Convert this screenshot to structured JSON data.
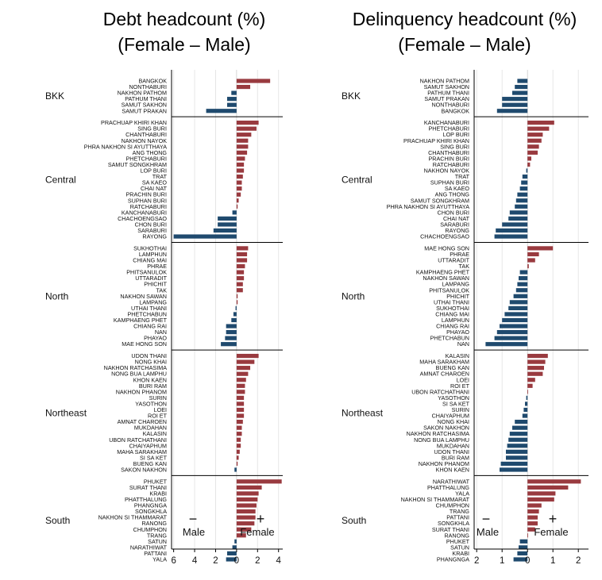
{
  "colors": {
    "positive": "#993a3f",
    "negative": "#1f4a6e",
    "grid": "#e6e6e6",
    "axis": "#000000"
  },
  "chart_data": [
    {
      "type": "bar",
      "orientation": "horizontal",
      "title_lines": [
        "Debt headcount (%)",
        "(Female – Male)"
      ],
      "x_reversed_labels": true,
      "xlim": [
        -6.2,
        4.4
      ],
      "xticks": [
        -6,
        -4,
        -2,
        0,
        2,
        4
      ],
      "xtick_labels": [
        "6",
        "4",
        "2",
        "0",
        "2",
        "4"
      ],
      "annotation": {
        "minus": "−",
        "plus": "+",
        "left_label": "Male",
        "right_label": "Female"
      },
      "groups": [
        {
          "region": "BKK",
          "provinces": [
            {
              "name": "BANGKOK",
              "value": 3.2
            },
            {
              "name": "NONTHABURI",
              "value": 1.3
            },
            {
              "name": "NAKHON PATHOM",
              "value": -0.5
            },
            {
              "name": "PATHUM THANI",
              "value": -0.9
            },
            {
              "name": "SAMUT SAKHON",
              "value": -0.9
            },
            {
              "name": "SAMUT PRAKAN",
              "value": -2.9
            }
          ]
        },
        {
          "region": "Central",
          "provinces": [
            {
              "name": "PRACHUAP KHIRI KHAN",
              "value": 2.1
            },
            {
              "name": "SING BURI",
              "value": 1.9
            },
            {
              "name": "CHANTHABURI",
              "value": 1.4
            },
            {
              "name": "NAKHON NAYOK",
              "value": 1.1
            },
            {
              "name": "PHRA NAKHON SI AYUTTHAYA",
              "value": 1.1
            },
            {
              "name": "ANG THONG",
              "value": 1.0
            },
            {
              "name": "PHETCHABURI",
              "value": 0.8
            },
            {
              "name": "SAMUT SONGKHRAM",
              "value": 0.7
            },
            {
              "name": "LOP BURI",
              "value": 0.7
            },
            {
              "name": "TRAT",
              "value": 0.6
            },
            {
              "name": "SA KAEO",
              "value": 0.5
            },
            {
              "name": "CHAI NAT",
              "value": 0.5
            },
            {
              "name": "PRACHIN BURI",
              "value": 0.4
            },
            {
              "name": "SUPHAN BURI",
              "value": 0.2
            },
            {
              "name": "RATCHABURI",
              "value": 0.1
            },
            {
              "name": "KANCHANABURI",
              "value": -0.4
            },
            {
              "name": "CHACHOENGSAO",
              "value": -1.8
            },
            {
              "name": "CHON BURI",
              "value": -1.8
            },
            {
              "name": "SARABURI",
              "value": -2.2
            },
            {
              "name": "RAYONG",
              "value": -6.0
            }
          ]
        },
        {
          "region": "North",
          "provinces": [
            {
              "name": "SUKHOTHAI",
              "value": 1.1
            },
            {
              "name": "LAMPHUN",
              "value": 1.0
            },
            {
              "name": "CHIANG MAI",
              "value": 1.0
            },
            {
              "name": "PHRAE",
              "value": 0.8
            },
            {
              "name": "PHITSANULOK",
              "value": 0.7
            },
            {
              "name": "UTTARADIT",
              "value": 0.7
            },
            {
              "name": "PHICHIT",
              "value": 0.6
            },
            {
              "name": "TAK",
              "value": 0.6
            },
            {
              "name": "NAKHON SAWAN",
              "value": 0.1
            },
            {
              "name": "LAMPANG",
              "value": 0.1
            },
            {
              "name": "UTHAI THANI",
              "value": -0.1
            },
            {
              "name": "PHETCHABUN",
              "value": -0.3
            },
            {
              "name": "KAMPHAENG PHET",
              "value": -0.5
            },
            {
              "name": "CHIANG RAI",
              "value": -1.0
            },
            {
              "name": "NAN",
              "value": -1.0
            },
            {
              "name": "PHAYAO",
              "value": -1.1
            },
            {
              "name": "MAE HONG SON",
              "value": -1.5
            }
          ]
        },
        {
          "region": "Northeast",
          "provinces": [
            {
              "name": "UDON THANI",
              "value": 2.1
            },
            {
              "name": "NONG KHAI",
              "value": 1.7
            },
            {
              "name": "NAKHON RATCHASIMA",
              "value": 1.3
            },
            {
              "name": "NONG BUA LAMPHU",
              "value": 1.1
            },
            {
              "name": "KHON KAEN",
              "value": 0.9
            },
            {
              "name": "BURI RAM",
              "value": 0.8
            },
            {
              "name": "NAKHON PHANOM",
              "value": 0.8
            },
            {
              "name": "SURIN",
              "value": 0.7
            },
            {
              "name": "YASOTHON",
              "value": 0.7
            },
            {
              "name": "LOEI",
              "value": 0.7
            },
            {
              "name": "ROI ET",
              "value": 0.7
            },
            {
              "name": "AMNAT CHAROEN",
              "value": 0.6
            },
            {
              "name": "MUKDAHAN",
              "value": 0.5
            },
            {
              "name": "KALASIN",
              "value": 0.5
            },
            {
              "name": "UBON RATCHATHANI",
              "value": 0.4
            },
            {
              "name": "CHAIYAPHUM",
              "value": 0.4
            },
            {
              "name": "MAHA SARAKHAM",
              "value": 0.3
            },
            {
              "name": "SI SA KET",
              "value": 0.2
            },
            {
              "name": "BUENG KAN",
              "value": 0.1
            },
            {
              "name": "SAKON NAKHON",
              "value": -0.2
            }
          ]
        },
        {
          "region": "South",
          "provinces": [
            {
              "name": "PHUKET",
              "value": 4.3
            },
            {
              "name": "SURAT THANI",
              "value": 2.4
            },
            {
              "name": "KRABI",
              "value": 2.1
            },
            {
              "name": "PHATTHALUNG",
              "value": 2.0
            },
            {
              "name": "PHANGNGA",
              "value": 1.9
            },
            {
              "name": "SONGKHLA",
              "value": 1.8
            },
            {
              "name": "NAKHON SI THAMMARAT",
              "value": 1.8
            },
            {
              "name": "RANONG",
              "value": 1.7
            },
            {
              "name": "CHUMPHON",
              "value": 1.4
            },
            {
              "name": "TRANG",
              "value": 0.9
            },
            {
              "name": "SATUN",
              "value": -0.2
            },
            {
              "name": "NARATHIWAT",
              "value": -0.4
            },
            {
              "name": "PATTANI",
              "value": -0.9
            },
            {
              "name": "YALA",
              "value": -1.0
            }
          ]
        }
      ]
    },
    {
      "type": "bar",
      "orientation": "horizontal",
      "title_lines": [
        "Delinquency headcount (%)",
        "(Female – Male)"
      ],
      "x_reversed_labels": true,
      "xlim": [
        -2.1,
        2.4
      ],
      "xticks": [
        -2,
        -1,
        0,
        1,
        2
      ],
      "xtick_labels": [
        "2",
        "1",
        "0",
        "1",
        "2"
      ],
      "annotation": {
        "minus": "−",
        "plus": "+",
        "left_label": "Male",
        "right_label": "Female"
      },
      "groups": [
        {
          "region": "BKK",
          "provinces": [
            {
              "name": "NAKHON PATHOM",
              "value": -0.4
            },
            {
              "name": "SAMUT SAKHON",
              "value": -0.5
            },
            {
              "name": "PATHUM THANI",
              "value": -0.6
            },
            {
              "name": "SAMUT PRAKAN",
              "value": -1.0
            },
            {
              "name": "NONTHABURI",
              "value": -1.0
            },
            {
              "name": "BANGKOK",
              "value": -1.2
            }
          ]
        },
        {
          "region": "Central",
          "provinces": [
            {
              "name": "KANCHANABURI",
              "value": 1.05
            },
            {
              "name": "PHETCHABURI",
              "value": 0.85
            },
            {
              "name": "LOP BURI",
              "value": 0.6
            },
            {
              "name": "PRACHUAP KHIRI KHAN",
              "value": 0.55
            },
            {
              "name": "SING BURI",
              "value": 0.45
            },
            {
              "name": "CHANTHABURI",
              "value": 0.4
            },
            {
              "name": "PRACHIN BURI",
              "value": 0.15
            },
            {
              "name": "RATCHABURI",
              "value": 0.1
            },
            {
              "name": "NAKHON NAYOK",
              "value": -0.05
            },
            {
              "name": "TRAT",
              "value": -0.2
            },
            {
              "name": "SUPHAN BURI",
              "value": -0.25
            },
            {
              "name": "SA KAEO",
              "value": -0.3
            },
            {
              "name": "ANG THONG",
              "value": -0.4
            },
            {
              "name": "SAMUT SONGKHRAM",
              "value": -0.45
            },
            {
              "name": "PHRA NAKHON SI AYUTTHAYA",
              "value": -0.5
            },
            {
              "name": "CHON BURI",
              "value": -0.7
            },
            {
              "name": "CHAI NAT",
              "value": -0.75
            },
            {
              "name": "SARABURI",
              "value": -1.0
            },
            {
              "name": "RAYONG",
              "value": -1.25
            },
            {
              "name": "CHACHOENGSAO",
              "value": -1.3
            }
          ]
        },
        {
          "region": "North",
          "provinces": [
            {
              "name": "MAE HONG SON",
              "value": 1.0
            },
            {
              "name": "PHRAE",
              "value": 0.45
            },
            {
              "name": "UTTARADIT",
              "value": 0.3
            },
            {
              "name": "TAK",
              "value": 0.05
            },
            {
              "name": "KAMPHAENG PHET",
              "value": -0.3
            },
            {
              "name": "NAKHON SAWAN",
              "value": -0.35
            },
            {
              "name": "LAMPANG",
              "value": -0.4
            },
            {
              "name": "PHITSANULOK",
              "value": -0.45
            },
            {
              "name": "PHICHIT",
              "value": -0.55
            },
            {
              "name": "UTHAI THANI",
              "value": -0.7
            },
            {
              "name": "SUKHOTHAI",
              "value": -0.75
            },
            {
              "name": "CHIANG MAI",
              "value": -0.9
            },
            {
              "name": "LAMPHUN",
              "value": -1.0
            },
            {
              "name": "CHIANG RAI",
              "value": -1.1
            },
            {
              "name": "PHAYAO",
              "value": -1.2
            },
            {
              "name": "PHETCHABUN",
              "value": -1.3
            },
            {
              "name": "NAN",
              "value": -1.65
            }
          ]
        },
        {
          "region": "Northeast",
          "provinces": [
            {
              "name": "KALASIN",
              "value": 0.8
            },
            {
              "name": "MAHA SARAKHAM",
              "value": 0.7
            },
            {
              "name": "BUENG KAN",
              "value": 0.65
            },
            {
              "name": "AMNAT CHAROEN",
              "value": 0.6
            },
            {
              "name": "LOEI",
              "value": 0.3
            },
            {
              "name": "ROI ET",
              "value": 0.2
            },
            {
              "name": "UBON RATCHATHANI",
              "value": 0.02
            },
            {
              "name": "YASOTHON",
              "value": -0.05
            },
            {
              "name": "SI SA KET",
              "value": -0.1
            },
            {
              "name": "SURIN",
              "value": -0.15
            },
            {
              "name": "CHAIYAPHUM",
              "value": -0.2
            },
            {
              "name": "NONG KHAI",
              "value": -0.5
            },
            {
              "name": "SAKON NAKHON",
              "value": -0.6
            },
            {
              "name": "NAKHON RATCHASIMA",
              "value": -0.7
            },
            {
              "name": "NONG BUA LAMPHU",
              "value": -0.75
            },
            {
              "name": "MUKDAHAN",
              "value": -0.8
            },
            {
              "name": "UDON THANI",
              "value": -0.85
            },
            {
              "name": "BURI RAM",
              "value": -0.85
            },
            {
              "name": "NAKHON PHANOM",
              "value": -1.05
            },
            {
              "name": "KHON KAEN",
              "value": -1.1
            }
          ]
        },
        {
          "region": "South",
          "provinces": [
            {
              "name": "NARATHIWAT",
              "value": 2.1
            },
            {
              "name": "PHATTHALUNG",
              "value": 1.6
            },
            {
              "name": "YALA",
              "value": 1.1
            },
            {
              "name": "NAKHON SI THAMMARAT",
              "value": 1.05
            },
            {
              "name": "CHUMPHON",
              "value": 0.55
            },
            {
              "name": "TRANG",
              "value": 0.45
            },
            {
              "name": "PATTANI",
              "value": 0.4
            },
            {
              "name": "SONGKHLA",
              "value": 0.4
            },
            {
              "name": "SURAT THANI",
              "value": 0.3
            },
            {
              "name": "RANONG",
              "value": 0.02
            },
            {
              "name": "PHUKET",
              "value": -0.3
            },
            {
              "name": "SATUN",
              "value": -0.35
            },
            {
              "name": "KRABI",
              "value": -0.4
            },
            {
              "name": "PHANGNGA",
              "value": -0.55
            }
          ]
        }
      ]
    }
  ]
}
